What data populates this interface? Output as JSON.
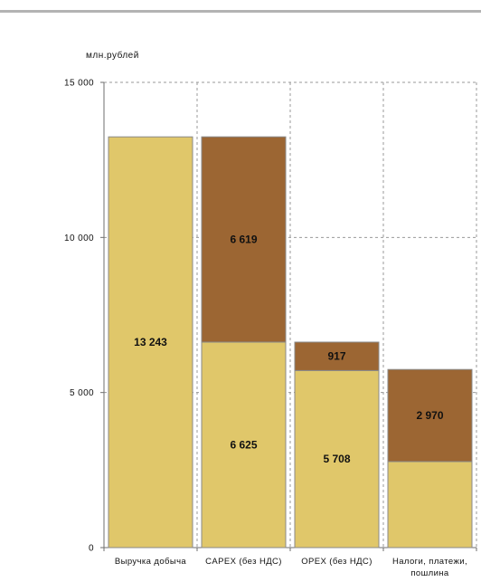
{
  "chart_data": {
    "type": "bar",
    "stacked": true,
    "unit_label": "млн.рублей",
    "ylim": [
      0,
      15000
    ],
    "yticks": [
      0,
      5000,
      10000,
      15000
    ],
    "ytick_labels": [
      "0",
      "5 000",
      "10 000",
      "15 000"
    ],
    "grid": true,
    "categories": [
      [
        "Выручка добыча"
      ],
      [
        "CAPEX (без НДС)"
      ],
      [
        "OPEX (без НДС)"
      ],
      [
        "Налоги, платежи,",
        "пошлина"
      ]
    ],
    "series": [
      {
        "values": [
          13243,
          6625,
          5708,
          2773
        ],
        "labels": [
          "13 243",
          "6 625",
          "5 708",
          ""
        ],
        "color": "#e0c76a",
        "label_color": "#111111"
      },
      {
        "values": [
          0,
          6619,
          917,
          2970
        ],
        "labels": [
          "",
          "6 619",
          "917",
          "2 970"
        ],
        "color": "#9c6633",
        "label_color": "#ffffff"
      }
    ]
  }
}
